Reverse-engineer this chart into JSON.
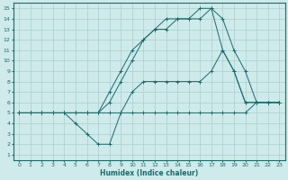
{
  "title": "",
  "xlabel": "Humidex (Indice chaleur)",
  "ylabel": "",
  "bg_color": "#ceeaea",
  "line_color": "#1a6b6b",
  "grid_color": "#aacfcf",
  "xlim": [
    -0.5,
    23.5
  ],
  "ylim": [
    0.5,
    15.5
  ],
  "xticks": [
    0,
    1,
    2,
    3,
    4,
    5,
    6,
    7,
    8,
    9,
    10,
    11,
    12,
    13,
    14,
    15,
    16,
    17,
    18,
    19,
    20,
    21,
    22,
    23
  ],
  "yticks": [
    1,
    2,
    3,
    4,
    5,
    6,
    7,
    8,
    9,
    10,
    11,
    12,
    13,
    14,
    15
  ],
  "line1_x": [
    0,
    1,
    2,
    3,
    4,
    5,
    6,
    7,
    8,
    9,
    10,
    11,
    12,
    13,
    14,
    15,
    16,
    17,
    18,
    19,
    20,
    21,
    22,
    23
  ],
  "line1_y": [
    5,
    5,
    5,
    5,
    5,
    5,
    5,
    5,
    5,
    5,
    5,
    5,
    5,
    5,
    5,
    5,
    5,
    5,
    5,
    5,
    5,
    6,
    6,
    6
  ],
  "line2_x": [
    0,
    1,
    2,
    3,
    4,
    5,
    6,
    7,
    8,
    9,
    10,
    11,
    12,
    13,
    14,
    15,
    16,
    17,
    18,
    19,
    20,
    21,
    22,
    23
  ],
  "line2_y": [
    5,
    5,
    5,
    5,
    5,
    4,
    3,
    2,
    2,
    5,
    7,
    8,
    8,
    8,
    8,
    8,
    8,
    9,
    11,
    9,
    6,
    6,
    6,
    6
  ],
  "line3_x": [
    0,
    1,
    2,
    3,
    4,
    5,
    6,
    7,
    8,
    9,
    10,
    11,
    12,
    13,
    14,
    15,
    16,
    17,
    18,
    19,
    20,
    21,
    22,
    23
  ],
  "line3_y": [
    5,
    5,
    5,
    5,
    5,
    5,
    5,
    5,
    6,
    8,
    10,
    12,
    13,
    13,
    14,
    14,
    15,
    15,
    14,
    11,
    9,
    6,
    6,
    6
  ],
  "line4_x": [
    0,
    1,
    2,
    3,
    4,
    5,
    6,
    7,
    8,
    9,
    10,
    11,
    12,
    13,
    14,
    15,
    16,
    17,
    18,
    19,
    20,
    21,
    22,
    23
  ],
  "line4_y": [
    5,
    5,
    5,
    5,
    5,
    5,
    5,
    5,
    7,
    9,
    11,
    12,
    13,
    14,
    14,
    14,
    14,
    15,
    11,
    9,
    6,
    6,
    6,
    6
  ]
}
